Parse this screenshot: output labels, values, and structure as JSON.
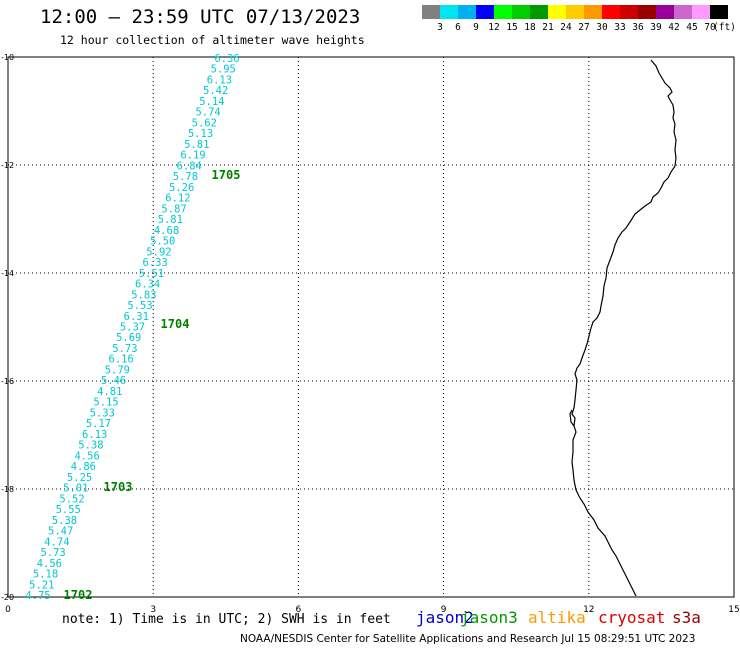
{
  "header": {
    "title": "12:00 – 23:59 UTC 07/13/2023",
    "subtitle": "12 hour collection of altimeter wave heights"
  },
  "legend": {
    "colors": [
      "#808080",
      "#00e5ee",
      "#00b0f0",
      "#0000ff",
      "#00ff00",
      "#00cc00",
      "#009900",
      "#ffff00",
      "#ffcc00",
      "#ff9900",
      "#ff0000",
      "#cc0000",
      "#990000",
      "#990099",
      "#cc66cc",
      "#ff99ff",
      "#000000"
    ],
    "labels": [
      "3",
      "6",
      "9",
      "12",
      "15",
      "18",
      "21",
      "24",
      "27",
      "30",
      "33",
      "36",
      "39",
      "42",
      "45",
      "70"
    ],
    "unit": "(ft)"
  },
  "map": {
    "x_ticks": [
      "0",
      "3",
      "6",
      "9",
      "12",
      "15"
    ],
    "y_ticks": [
      "-10",
      "-12",
      "-14",
      "-16",
      "-18",
      "-20"
    ],
    "track_color": "#00c8d2",
    "time_color": "#008000",
    "coast_color": "#000000",
    "time_labels": [
      "1705",
      "1704",
      "1703",
      "1702"
    ],
    "swh_values": [
      "6.36",
      "5.95",
      "6.13",
      "5.42",
      "5.14",
      "5.74",
      "5.62",
      "5.13",
      "5.81",
      "6.19",
      "6.84",
      "5.78",
      "5.26",
      "6.12",
      "5.87",
      "5.81",
      "4.68",
      "5.50",
      "5.92",
      "6.33",
      "5.51",
      "6.34",
      "5.83",
      "5.53",
      "6.31",
      "5.37",
      "5.69",
      "5.73",
      "6.16",
      "5.79",
      "5.46",
      "4.81",
      "5.15",
      "5.33",
      "5.17",
      "6.13",
      "5.38",
      "4.56",
      "4.86",
      "5.25",
      "5.01",
      "5.52",
      "5.55",
      "5.38",
      "5.47",
      "4.74",
      "5.73",
      "4.56",
      "5.18",
      "5.21",
      "4.75"
    ]
  },
  "footer": {
    "note": "note:  1) Time is in UTC; 2) SWH is in feet",
    "satellites": [
      {
        "name": "jason2",
        "color": "#0000cc"
      },
      {
        "name": "jason3",
        "color": "#009900"
      },
      {
        "name": "altika",
        "color": "#ff9900"
      },
      {
        "name": "cryosat",
        "color": "#dd0000"
      },
      {
        "name": "s3a",
        "color": "#990000"
      }
    ],
    "credit": "NOAA/NESDIS Center for Satellite Applications and Research    Jul 15 08:29:51 UTC 2023"
  }
}
